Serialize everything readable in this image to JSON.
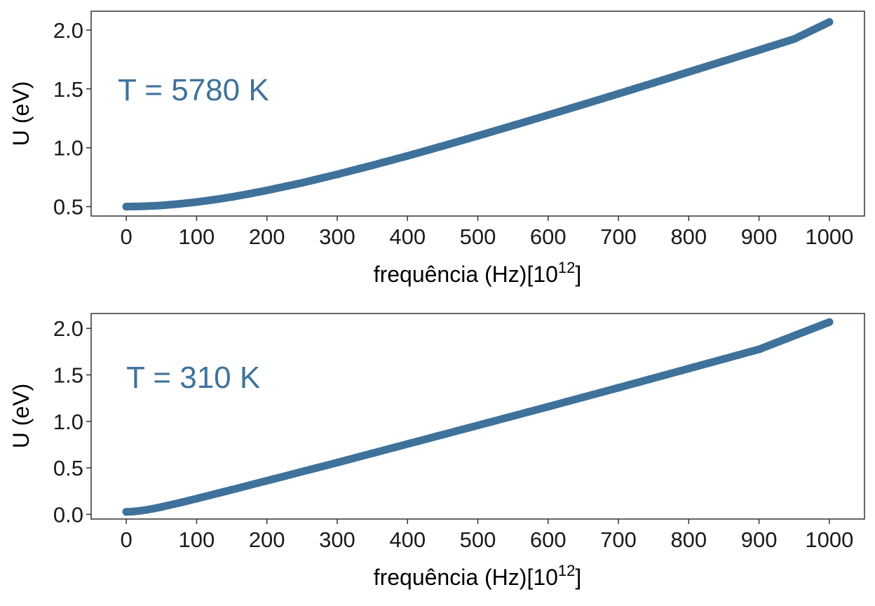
{
  "colors": {
    "series": "#3f729b",
    "axis": "#333333",
    "text": "#1a1a1a"
  },
  "chart_data": [
    {
      "type": "scatter",
      "annotation": "T = 5780 K",
      "xlabel": "frequência (Hz)[10",
      "xlabel_exponent": "12",
      "xlabel_suffix": "]",
      "ylabel": "U (eV)",
      "xlim": [
        -50,
        1050
      ],
      "ylim": [
        0.42,
        2.16
      ],
      "xticks": [
        0,
        100,
        200,
        300,
        400,
        500,
        600,
        700,
        800,
        900,
        1000
      ],
      "xtick_labels": [
        "0",
        "100",
        "200",
        "300",
        "400",
        "500",
        "600",
        "700",
        "800",
        "900",
        "1000"
      ],
      "yticks": [
        0.5,
        1.0,
        1.5,
        2.0
      ],
      "ytick_labels": [
        "0.5",
        "1.0",
        "1.5",
        "2.0"
      ],
      "grid": false,
      "x": [
        0,
        25,
        50,
        75,
        100,
        125,
        150,
        175,
        200,
        250,
        300,
        350,
        400,
        450,
        500,
        550,
        600,
        650,
        700,
        750,
        800,
        850,
        900,
        950,
        1000
      ],
      "y": [
        0.5,
        0.503,
        0.51,
        0.523,
        0.539,
        0.559,
        0.582,
        0.609,
        0.638,
        0.702,
        0.774,
        0.851,
        0.931,
        1.015,
        1.101,
        1.189,
        1.278,
        1.368,
        1.459,
        1.551,
        1.644,
        1.737,
        1.83,
        1.924,
        2.068
      ]
    },
    {
      "type": "scatter",
      "annotation": "T = 310 K",
      "xlabel": "frequência (Hz)[10",
      "xlabel_exponent": "12",
      "xlabel_suffix": "]",
      "ylabel": "U (eV)",
      "xlim": [
        -50,
        1050
      ],
      "ylim": [
        -0.05,
        2.16
      ],
      "xticks": [
        0,
        100,
        200,
        300,
        400,
        500,
        600,
        700,
        800,
        900,
        1000
      ],
      "xtick_labels": [
        "0",
        "100",
        "200",
        "300",
        "400",
        "500",
        "600",
        "700",
        "800",
        "900",
        "1000"
      ],
      "yticks": [
        0.0,
        0.5,
        1.0,
        1.5,
        2.0
      ],
      "ytick_labels": [
        "0.0",
        "0.5",
        "1.0",
        "1.5",
        "2.0"
      ],
      "grid": false,
      "x": [
        0,
        10,
        20,
        30,
        40,
        50,
        75,
        100,
        150,
        200,
        300,
        400,
        500,
        600,
        700,
        800,
        900,
        1000
      ],
      "y": [
        0.027,
        0.031,
        0.039,
        0.05,
        0.064,
        0.08,
        0.123,
        0.169,
        0.265,
        0.362,
        0.557,
        0.757,
        0.957,
        1.158,
        1.362,
        1.568,
        1.775,
        2.068
      ]
    }
  ]
}
